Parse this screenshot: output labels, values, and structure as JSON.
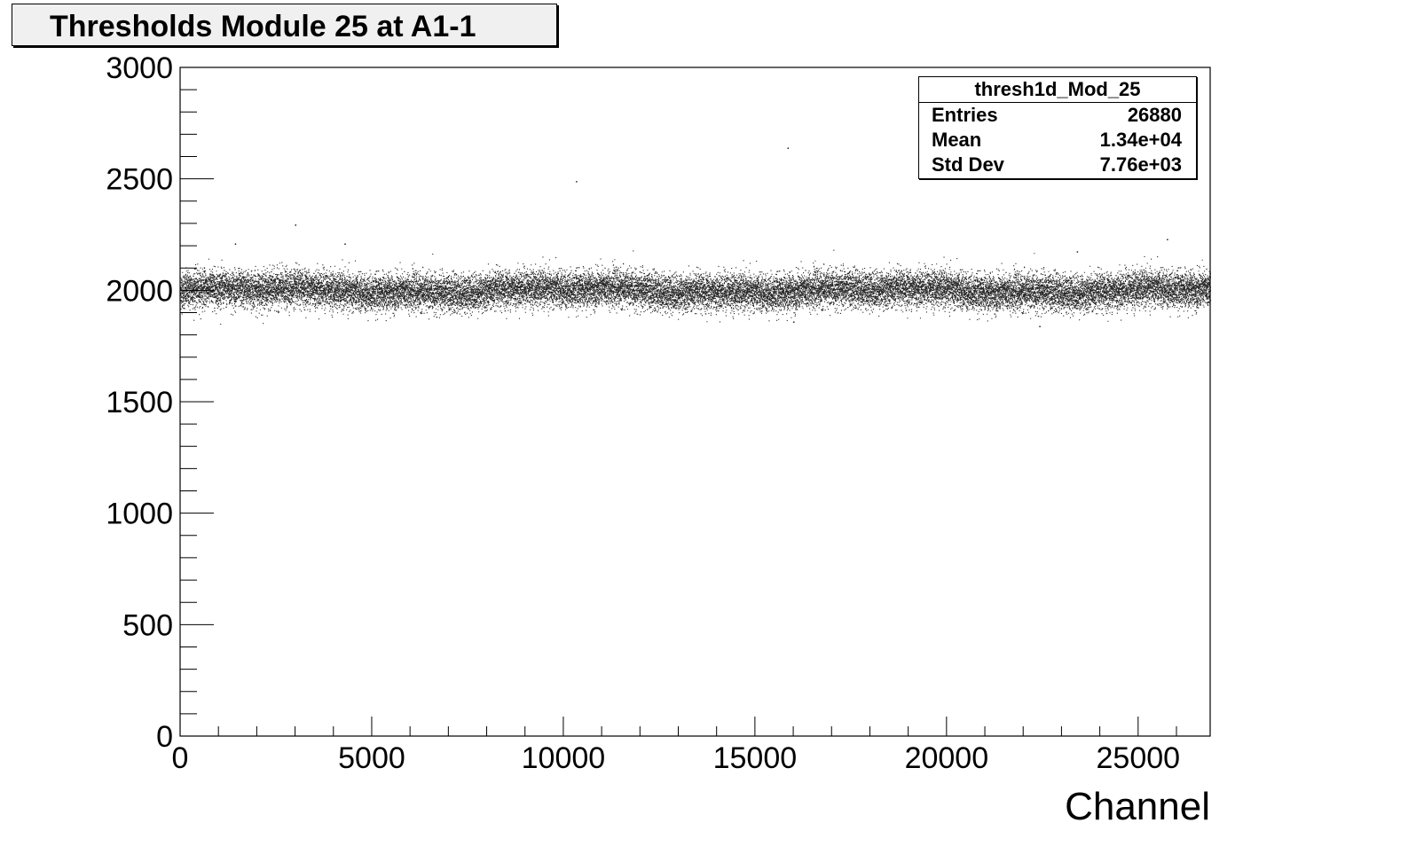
{
  "title": "Thresholds Module 25 at A1-1",
  "stats": {
    "name": "thresh1d_Mod_25",
    "rows": [
      {
        "label": "Entries",
        "value": "26880"
      },
      {
        "label": "Mean",
        "value": "1.34e+04"
      },
      {
        "label": "Std Dev",
        "value": "7.76e+03"
      }
    ]
  },
  "chart_data": {
    "type": "scatter",
    "title": "Thresholds Module 25 at A1-1",
    "xlabel": "Channel",
    "ylabel": "",
    "xlim": [
      0,
      26880
    ],
    "ylim": [
      0,
      3000
    ],
    "x_ticks": [
      "0",
      "5000",
      "10000",
      "15000",
      "20000",
      "25000"
    ],
    "y_ticks": [
      "0",
      "500",
      "1000",
      "1500",
      "2000",
      "2500",
      "3000"
    ],
    "grid": false,
    "n_points": 26880,
    "distribution": {
      "center": 2000,
      "spread": 40,
      "note_band": [
        1880,
        2130
      ]
    },
    "outliers": [
      {
        "x": 1430,
        "y": 2210
      },
      {
        "x": 3000,
        "y": 2295
      },
      {
        "x": 4290,
        "y": 2210
      },
      {
        "x": 10330,
        "y": 2490
      },
      {
        "x": 15850,
        "y": 2640
      },
      {
        "x": 22420,
        "y": 1840
      },
      {
        "x": 25750,
        "y": 2230
      },
      {
        "x": 23400,
        "y": 2175
      },
      {
        "x": 16000,
        "y": 1860
      }
    ],
    "point_color": "#000000"
  }
}
